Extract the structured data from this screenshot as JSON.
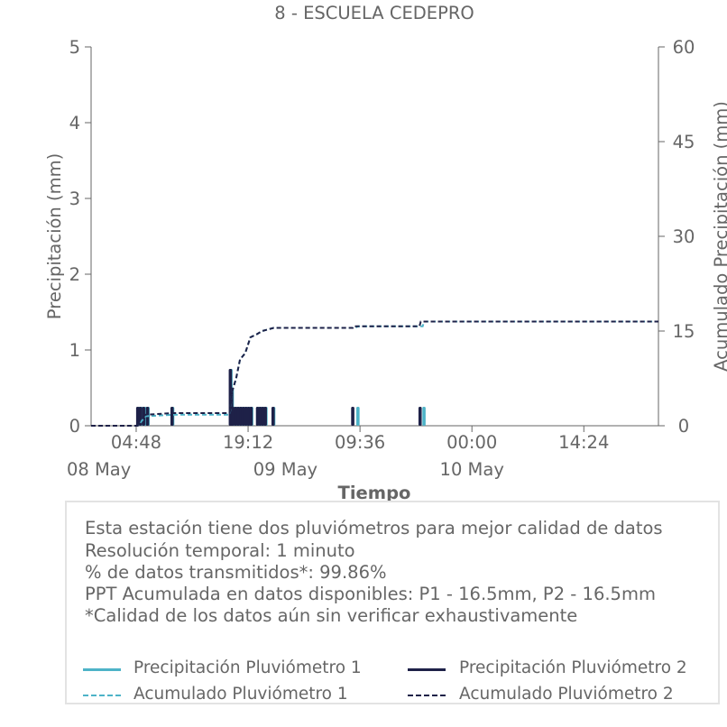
{
  "chart_data": {
    "type": "bar",
    "title": "8 - ESCUELA CEDEPRO",
    "xlabel": "Tiempo",
    "ylabel": "Precipitación (mm)",
    "ylabel_right": "Acumulado Precipitación (mm)",
    "ylim": [
      0,
      5
    ],
    "ylim_right": [
      0,
      60
    ],
    "yticks": [
      "0",
      "1",
      "2",
      "3",
      "4",
      "5"
    ],
    "yticks_right": [
      "0",
      "15",
      "30",
      "45",
      "60"
    ],
    "x_range": [
      "2024-05-07 23:00",
      "2024-05-11 00:00"
    ],
    "xticks": [
      {
        "time": "2024-05-08 04:48",
        "label": "04:48",
        "date_label": "08 May"
      },
      {
        "time": "2024-05-08 19:12",
        "label": "19:12",
        "date_label": ""
      },
      {
        "time": "2024-05-09 09:36",
        "label": "09:36",
        "date_label": "09 May"
      },
      {
        "time": "2024-05-10 00:00",
        "label": "00:00",
        "date_label": "10 May"
      },
      {
        "time": "2024-05-10 14:24",
        "label": "14:24",
        "date_label": ""
      }
    ],
    "grid": false,
    "legend_position": "bottom",
    "series": [
      {
        "name": "Precipitación Pluviómetro 1",
        "kind": "bar",
        "color": "#4db3c8",
        "points": [
          [
            "2024-05-08 05:10",
            0.25
          ],
          [
            "2024-05-08 05:30",
            0.25
          ],
          [
            "2024-05-08 05:55",
            0.25
          ],
          [
            "2024-05-08 06:20",
            0.25
          ],
          [
            "2024-05-08 09:30",
            0.25
          ],
          [
            "2024-05-08 17:00",
            0.75
          ],
          [
            "2024-05-08 17:10",
            0.5
          ],
          [
            "2024-05-08 17:20",
            0.25
          ],
          [
            "2024-05-08 17:40",
            0.25
          ],
          [
            "2024-05-08 18:00",
            0.25
          ],
          [
            "2024-05-08 18:20",
            0.25
          ],
          [
            "2024-05-08 18:40",
            0.25
          ],
          [
            "2024-05-08 19:00",
            0.25
          ],
          [
            "2024-05-08 19:20",
            0.25
          ],
          [
            "2024-05-08 19:40",
            0.25
          ],
          [
            "2024-05-08 20:30",
            0.25
          ],
          [
            "2024-05-08 20:50",
            0.25
          ],
          [
            "2024-05-08 21:10",
            0.25
          ],
          [
            "2024-05-08 21:30",
            0.25
          ],
          [
            "2024-05-08 22:30",
            0.25
          ],
          [
            "2024-05-09 09:20",
            0.25
          ],
          [
            "2024-05-09 17:50",
            0.25
          ]
        ]
      },
      {
        "name": "Precipitación Pluviómetro 2",
        "kind": "bar",
        "color": "#1e2148",
        "points": [
          [
            "2024-05-08 05:00",
            0.25
          ],
          [
            "2024-05-08 05:20",
            0.25
          ],
          [
            "2024-05-08 05:45",
            0.25
          ],
          [
            "2024-05-08 06:15",
            0.25
          ],
          [
            "2024-05-08 09:25",
            0.25
          ],
          [
            "2024-05-08 16:55",
            0.75
          ],
          [
            "2024-05-08 17:05",
            0.5
          ],
          [
            "2024-05-08 17:15",
            0.25
          ],
          [
            "2024-05-08 17:35",
            0.25
          ],
          [
            "2024-05-08 17:55",
            0.25
          ],
          [
            "2024-05-08 18:15",
            0.25
          ],
          [
            "2024-05-08 18:35",
            0.25
          ],
          [
            "2024-05-08 18:55",
            0.25
          ],
          [
            "2024-05-08 19:15",
            0.25
          ],
          [
            "2024-05-08 19:35",
            0.25
          ],
          [
            "2024-05-08 20:25",
            0.25
          ],
          [
            "2024-05-08 20:45",
            0.25
          ],
          [
            "2024-05-08 21:05",
            0.25
          ],
          [
            "2024-05-08 21:25",
            0.25
          ],
          [
            "2024-05-08 22:25",
            0.25
          ],
          [
            "2024-05-09 08:40",
            0.25
          ],
          [
            "2024-05-09 17:20",
            0.25
          ]
        ]
      },
      {
        "name": "Acumulado Pluviómetro 1",
        "kind": "line",
        "dashed": true,
        "axis": "right",
        "color": "#4db3c8",
        "points": [
          [
            "2024-05-07 23:00",
            0
          ],
          [
            "2024-05-08 05:00",
            0
          ],
          [
            "2024-05-08 05:30",
            0.75
          ],
          [
            "2024-05-08 06:00",
            1.5
          ],
          [
            "2024-05-08 09:30",
            1.75
          ],
          [
            "2024-05-08 16:50",
            1.75
          ],
          [
            "2024-05-08 17:10",
            5.5
          ],
          [
            "2024-05-08 17:40",
            7.5
          ],
          [
            "2024-05-08 18:10",
            10.5
          ],
          [
            "2024-05-08 18:50",
            11.5
          ],
          [
            "2024-05-08 19:30",
            14
          ],
          [
            "2024-05-08 20:20",
            14.5
          ],
          [
            "2024-05-08 21:00",
            15
          ],
          [
            "2024-05-08 22:30",
            15.5
          ],
          [
            "2024-05-09 09:00",
            15.5
          ],
          [
            "2024-05-09 09:20",
            15.75
          ],
          [
            "2024-05-09 17:40",
            15.75
          ],
          [
            "2024-05-09 17:50",
            16.5
          ],
          [
            "2024-05-11 00:00",
            16.5
          ]
        ]
      },
      {
        "name": "Acumulado Pluviómetro 2",
        "kind": "line",
        "dashed": true,
        "axis": "right",
        "color": "#1e2148",
        "points": [
          [
            "2024-05-07 23:00",
            0
          ],
          [
            "2024-05-08 05:00",
            0
          ],
          [
            "2024-05-08 05:20",
            1
          ],
          [
            "2024-05-08 06:00",
            1.75
          ],
          [
            "2024-05-08 09:25",
            2
          ],
          [
            "2024-05-08 16:50",
            2
          ],
          [
            "2024-05-08 17:10",
            5.5
          ],
          [
            "2024-05-08 17:40",
            7.5
          ],
          [
            "2024-05-08 18:10",
            10.5
          ],
          [
            "2024-05-08 18:50",
            11.5
          ],
          [
            "2024-05-08 19:30",
            14
          ],
          [
            "2024-05-08 20:20",
            14.5
          ],
          [
            "2024-05-08 21:00",
            15
          ],
          [
            "2024-05-08 22:30",
            15.5
          ],
          [
            "2024-05-09 08:40",
            15.5
          ],
          [
            "2024-05-09 08:45",
            15.75
          ],
          [
            "2024-05-09 17:15",
            15.75
          ],
          [
            "2024-05-09 17:25",
            16.5
          ],
          [
            "2024-05-11 00:00",
            16.5
          ]
        ]
      }
    ]
  },
  "notes": {
    "line1": "Esta estación tiene dos pluviómetros para mejor calidad de datos",
    "line2": "Resolución temporal: 1 minuto",
    "line3": "% de datos transmitidos*: 99.86%",
    "line4": "PPT Acumulada en datos disponibles: P1 - 16.5mm, P2 - 16.5mm",
    "line5": "*Calidad de los datos aún sin verificar exhaustivamente"
  },
  "legend": {
    "p1_precip": "Precipitación Pluviómetro 1",
    "p2_precip": "Precipitación Pluviómetro 2",
    "p1_acum": "Acumulado Pluviómetro 1",
    "p2_acum": "Acumulado Pluviómetro 2"
  },
  "colors": {
    "p1": "#4db3c8",
    "p2": "#1e2148",
    "axis": "#666666"
  }
}
